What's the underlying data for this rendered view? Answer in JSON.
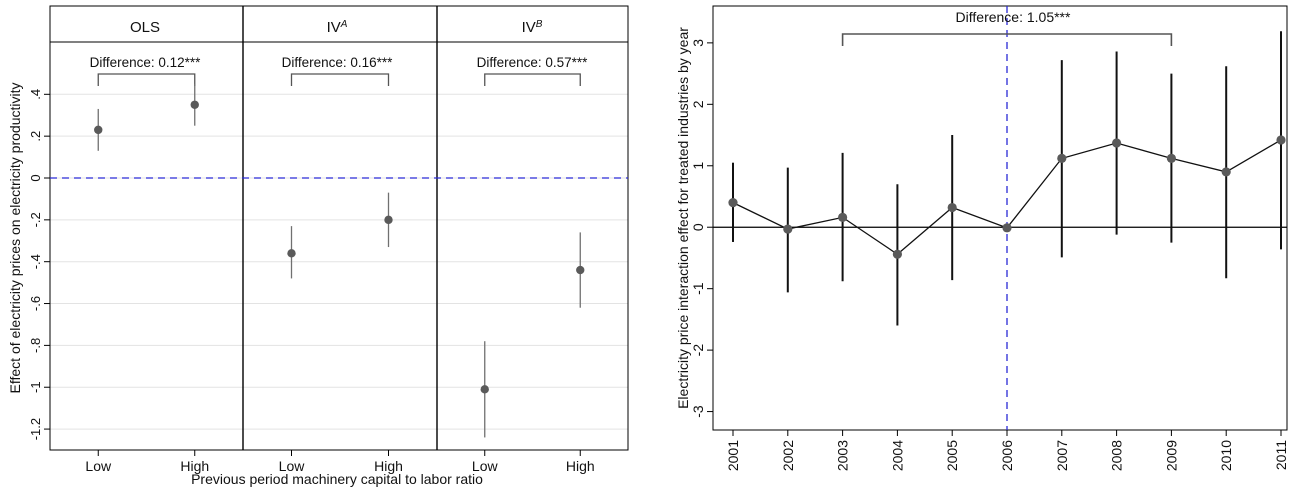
{
  "chart_data": [
    {
      "type": "scatter",
      "subtype": "coefficient-plot-with-confidence-intervals",
      "ylabel": "Effect of electricity prices on electricity productivity",
      "xlabel": "Previous period machinery capital to labor ratio",
      "ylim": [
        -1.3,
        0.65
      ],
      "yticks": [
        -1.2,
        -1,
        -0.8,
        -0.6,
        -0.4,
        -0.2,
        0,
        0.2,
        0.4
      ],
      "ytick_labels": [
        "-1.2",
        "-1",
        "-.8",
        "-.6",
        "-.4",
        "-.2",
        "0",
        ".2",
        ".4"
      ],
      "grid": true,
      "reference_line": {
        "y": 0,
        "style": "dashed",
        "color": "#2a2ad6"
      },
      "categories": [
        "Low",
        "High"
      ],
      "panels": [
        {
          "title": "OLS",
          "title_sup": "",
          "difference_label": "Difference: 0.12***",
          "points": [
            {
              "x": "Low",
              "y": 0.23,
              "lo": 0.13,
              "hi": 0.33
            },
            {
              "x": "High",
              "y": 0.35,
              "lo": 0.25,
              "hi": 0.45
            }
          ]
        },
        {
          "title": "IV",
          "title_sup": "A",
          "difference_label": "Difference: 0.16***",
          "points": [
            {
              "x": "Low",
              "y": -0.36,
              "lo": -0.48,
              "hi": -0.23
            },
            {
              "x": "High",
              "y": -0.2,
              "lo": -0.33,
              "hi": -0.07
            }
          ]
        },
        {
          "title": "IV",
          "title_sup": "B",
          "difference_label": "Difference: 0.57***",
          "points": [
            {
              "x": "Low",
              "y": -1.01,
              "lo": -1.24,
              "hi": -0.78
            },
            {
              "x": "High",
              "y": -0.44,
              "lo": -0.62,
              "hi": -0.26
            }
          ]
        }
      ]
    },
    {
      "type": "line",
      "subtype": "event-study-with-confidence-intervals",
      "ylabel": "Electricity price interaction effect for treated industries by year",
      "xlabel": "",
      "ylim": [
        -3.3,
        3.6
      ],
      "yticks": [
        -3,
        -2,
        -1,
        0,
        1,
        2,
        3
      ],
      "ytick_labels": [
        "-3",
        "-2",
        "-1",
        "0",
        "1",
        "2",
        "3"
      ],
      "categories": [
        "2001",
        "2002",
        "2003",
        "2004",
        "2005",
        "2006",
        "2007",
        "2008",
        "2009",
        "2010",
        "2011"
      ],
      "values": [
        0.4,
        -0.03,
        0.16,
        -0.44,
        0.32,
        -0.01,
        1.12,
        1.37,
        1.12,
        0.9,
        1.42
      ],
      "ci_lower": [
        -0.24,
        -1.06,
        -0.88,
        -1.6,
        -0.86,
        -0.01,
        -0.49,
        -0.12,
        -0.25,
        -0.83,
        -0.36
      ],
      "ci_upper": [
        1.05,
        0.97,
        1.21,
        0.7,
        1.5,
        -0.01,
        2.72,
        2.86,
        2.5,
        2.62,
        3.19
      ],
      "reference_line_y": 0,
      "event_line": {
        "x": "2006",
        "style": "dashed",
        "color": "#2a2ad6"
      },
      "bracket": {
        "from": "2003",
        "to": "2009",
        "label": "Difference: 1.05***"
      },
      "grid": false
    }
  ],
  "colors": {
    "marker": "#5a5a5a",
    "ci": "#707070",
    "ref_line": "#2a2ad6",
    "grid": "#e3e3e3"
  }
}
